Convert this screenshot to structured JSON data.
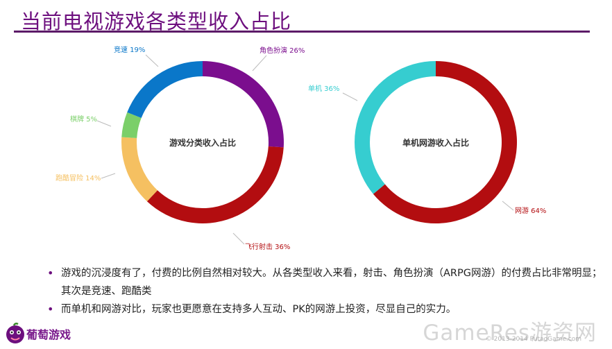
{
  "page": {
    "title": "当前电视游戏各类型收入占比",
    "bullets": [
      "游戏的沉浸度有了，付费的比例自然相对较大。从各类型收入来看，射击、角色扮演（ARPG网游）的付费占比非常明显；其次是竞速、跑酷类",
      "而单机和网游对比，玩家也更愿意在支持多人互动、PK的网游上投资，尽显自己的实力。"
    ],
    "logo_text": "葡萄游戏",
    "watermark": "GameRes游资网",
    "watermark_sub": "© 2013-2014 PutaoGame.com"
  },
  "colors": {
    "title": "#6d0f7e",
    "rule": "#5c1a68"
  },
  "chart_data": [
    {
      "type": "pie",
      "style": "donut",
      "center_label": "游戏分类收入占比",
      "slices": [
        {
          "label": "角色扮演",
          "value": 26,
          "value_text": "26%",
          "color": "#7b0e8e"
        },
        {
          "label": "飞行射击",
          "value": 36,
          "value_text": "36%",
          "color": "#b30d10"
        },
        {
          "label": "跑酷冒险",
          "value": 14,
          "value_text": "14%",
          "color": "#f5c061"
        },
        {
          "label": "棋牌",
          "value": 5,
          "value_text": "5%",
          "color": "#7bcf69"
        },
        {
          "label": "竞速",
          "value": 19,
          "value_text": "19%",
          "color": "#0a77c9"
        }
      ]
    },
    {
      "type": "pie",
      "style": "donut",
      "center_label": "单机网游收入占比",
      "slices": [
        {
          "label": "网游",
          "value": 64,
          "value_text": "64%",
          "color": "#b30d10"
        },
        {
          "label": "单机",
          "value": 36,
          "value_text": "36%",
          "color": "#36cdd0"
        }
      ]
    }
  ]
}
